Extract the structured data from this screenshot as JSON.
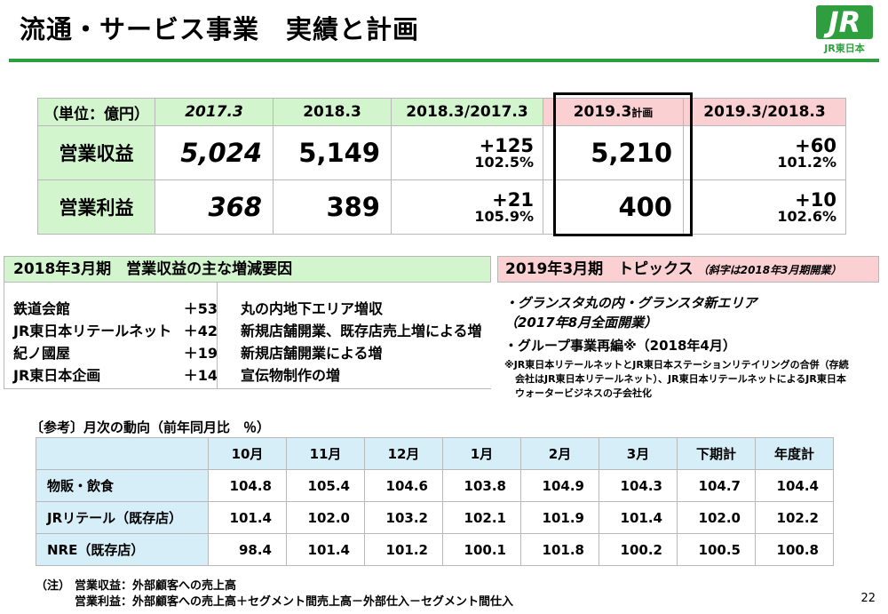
{
  "title": "流通・サービス事業　実績と計画",
  "logo": {
    "mark": "JR",
    "sub": "JR東日本"
  },
  "summary": {
    "unit": "（単位：億円）",
    "headers": [
      "2017.3",
      "2018.3",
      "2018.3/2017.3",
      "2019.3",
      "計画",
      "2019.3/2018.3"
    ],
    "rows": [
      {
        "label": "営業収益",
        "v2017": "5,024",
        "v2018": "5,149",
        "diff1": "+125",
        "pct1": "102.5%",
        "plan": "5,210",
        "diff2": "+60",
        "pct2": "101.2%"
      },
      {
        "label": "営業利益",
        "v2017": "368",
        "v2018": "389",
        "diff1": "+21",
        "pct1": "105.9%",
        "plan": "400",
        "diff2": "+10",
        "pct2": "102.6%"
      }
    ]
  },
  "left_panel": {
    "header": "2018年3月期　営業収益の主な増減要因",
    "items": [
      {
        "name": "鉄道会館",
        "value": "＋53",
        "reason": "丸の内地下エリア増収"
      },
      {
        "name": "JR東日本リテールネット",
        "value": "＋42",
        "reason": "新規店舗開業、既存店売上増による増"
      },
      {
        "name": "紀ノ國屋",
        "value": "＋19",
        "reason": "新規店舗開業による増"
      },
      {
        "name": "JR東日本企画",
        "value": "＋14",
        "reason": "宣伝物制作の増"
      }
    ]
  },
  "right_panel": {
    "header_main": "2019年3月期　トピックス",
    "header_note": "（斜字は2018年3月期開業）",
    "line1": "・グランスタ丸の内・グランスタ新エリア",
    "line2": "（2017年8月全面開業）",
    "line3": "・グループ事業再編※（2018年4月）",
    "note1": "※JR東日本リテールネットとJR東日本ステーションリテイリングの合併（存続",
    "note2": "会社はJR東日本リテールネット）、JR東日本リテールネットによるJR東日本",
    "note3": "ウォータービジネスの子会社化"
  },
  "monthly": {
    "label": "〔参考〕月次の動向（前年同月比　％）",
    "headers": [
      "10月",
      "11月",
      "12月",
      "1月",
      "2月",
      "3月",
      "下期計",
      "年度計"
    ],
    "rows": [
      {
        "label": "物販・飲食",
        "values": [
          "104.8",
          "105.4",
          "104.6",
          "103.8",
          "104.9",
          "104.3",
          "104.7",
          "104.4"
        ]
      },
      {
        "label": "JRリテール（既存店）",
        "values": [
          "101.4",
          "102.0",
          "103.2",
          "102.1",
          "101.9",
          "101.4",
          "102.0",
          "102.2"
        ]
      },
      {
        "label": "NRE（既存店）",
        "values": [
          "98.4",
          "101.4",
          "101.2",
          "100.1",
          "101.8",
          "100.2",
          "100.5",
          "100.8"
        ]
      }
    ]
  },
  "notes": {
    "prefix": "（注）",
    "line1": "営業収益：外部顧客への売上高",
    "line2": "営業利益：外部顧客への売上高＋セグメント間売上高－外部仕入－セグメント間仕入"
  },
  "page_number": "22",
  "colors": {
    "green_rule": "#2e9e3e",
    "green_fill": "#d2f5ce",
    "pink_fill": "#fbd0d3",
    "blue_fill": "#d6eef8"
  }
}
